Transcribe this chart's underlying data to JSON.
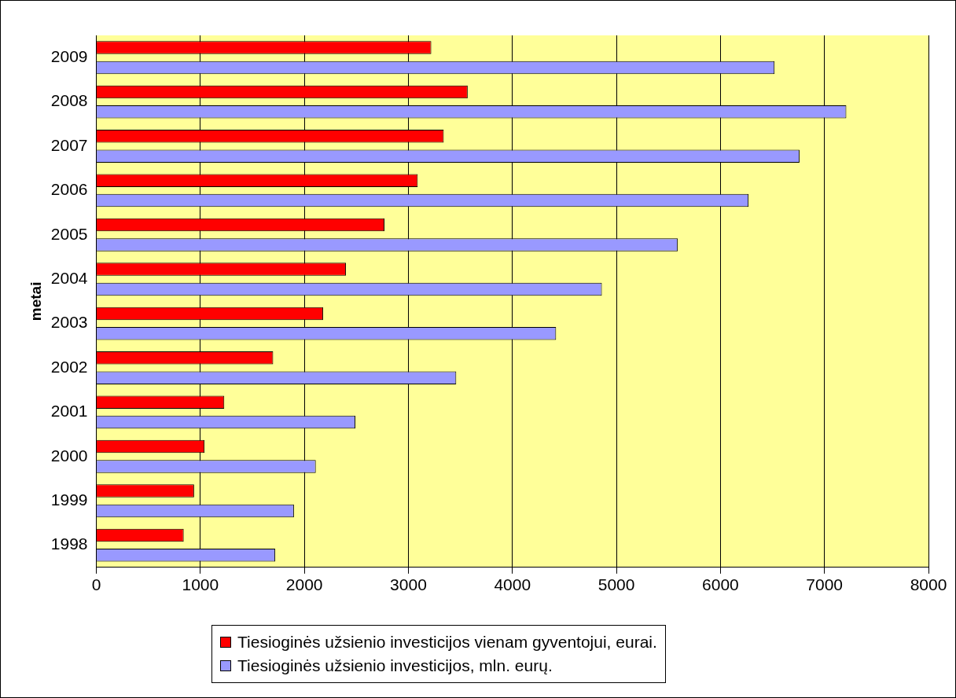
{
  "chart_data": {
    "type": "bar",
    "orientation": "horizontal",
    "ylabel": "metai",
    "categories": [
      "2009",
      "2008",
      "2007",
      "2006",
      "2005",
      "2004",
      "2003",
      "2002",
      "2001",
      "2000",
      "1999",
      "1998"
    ],
    "series": [
      {
        "name": "Tiesioginės užsienio investicijos vienam gyventojui, eurai.",
        "color": "#ff0000",
        "values": [
          3220,
          3570,
          3340,
          3090,
          2770,
          2400,
          2180,
          1700,
          1230,
          1040,
          940,
          840
        ]
      },
      {
        "name": "Tiesioginės užsienio investicijos, mln. eurų.",
        "color": "#9999ff",
        "values": [
          6520,
          7210,
          6760,
          6270,
          5590,
          4860,
          4420,
          3460,
          2490,
          2110,
          1900,
          1720
        ]
      }
    ],
    "xlim": [
      0,
      8000
    ],
    "xticks": [
      0,
      1000,
      2000,
      3000,
      4000,
      5000,
      6000,
      7000,
      8000
    ],
    "grid": "x",
    "legend": "bottom"
  }
}
